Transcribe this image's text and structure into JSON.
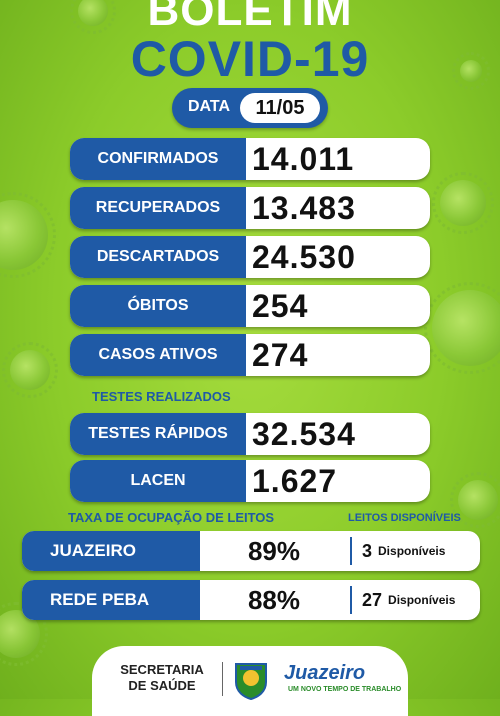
{
  "header": {
    "title_line1": "BOLETIM",
    "title_line2": "COVID-19"
  },
  "date": {
    "label": "DATA",
    "value": "11/05"
  },
  "cases": [
    {
      "label": "CONFIRMADOS",
      "value": "14.011"
    },
    {
      "label": "RECUPERADOS",
      "value": "13.483"
    },
    {
      "label": "DESCARTADOS",
      "value": "24.530"
    },
    {
      "label": "ÓBITOS",
      "value": "254"
    },
    {
      "label": "CASOS ATIVOS",
      "value": "274"
    }
  ],
  "tests": {
    "heading": "TESTES REALIZADOS",
    "rows": [
      {
        "label": "TESTES RÁPIDOS",
        "value": "32.534"
      },
      {
        "label": "LACEN",
        "value": "1.627"
      }
    ]
  },
  "occupancy": {
    "heading": "TAXA DE OCUPAÇÃO DE LEITOS",
    "available_heading": "LEITOS DISPONÍVEIS",
    "rows": [
      {
        "label": "JUAZEIRO",
        "percent": "89%",
        "available": "3",
        "available_text": "Disponíveis"
      },
      {
        "label": "REDE PEBA",
        "percent": "88%",
        "available": "27",
        "available_text": "Disponíveis"
      }
    ]
  },
  "footer": {
    "secretaria_line1": "SECRETARIA",
    "secretaria_line2": "DE SAÚDE",
    "city_logo": "Juazeiro",
    "city_slogan": "UM NOVO TEMPO DE TRABALHO",
    "crest_icon": "city-crest-icon"
  },
  "colors": {
    "background": "#8ccc2a",
    "accent_blue": "#1f5aa6",
    "white": "#ffffff"
  }
}
